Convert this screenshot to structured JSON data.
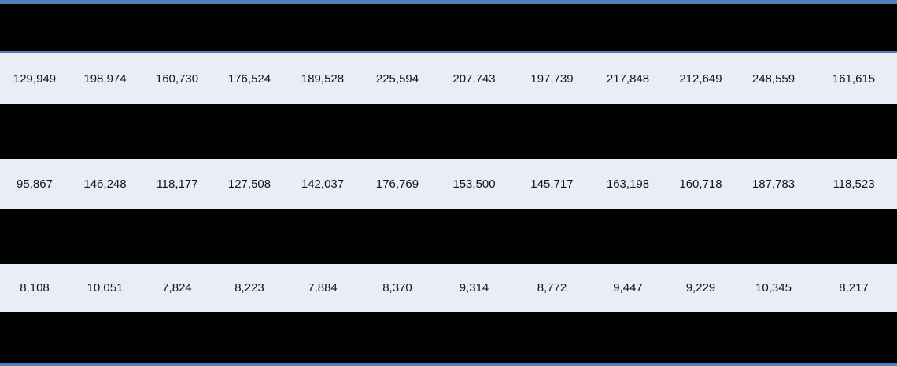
{
  "colors": {
    "accent_border": "#4f81bd",
    "data_row_background": "#e9edf5",
    "redacted_band": "#000000",
    "cell_text": "#141414"
  },
  "table": {
    "column_count": 12,
    "redacted_row_count": 4,
    "data_rows": [
      [
        "129,949",
        "198,974",
        "160,730",
        "176,524",
        "189,528",
        "225,594",
        "207,743",
        "197,739",
        "217,848",
        "212,649",
        "248,559",
        "161,615"
      ],
      [
        "95,867",
        "146,248",
        "118,177",
        "127,508",
        "142,037",
        "176,769",
        "153,500",
        "145,717",
        "163,198",
        "160,718",
        "187,783",
        "118,523"
      ],
      [
        "8,108",
        "10,051",
        "7,824",
        "8,223",
        "7,884",
        "8,370",
        "9,314",
        "8,772",
        "9,447",
        "9,229",
        "10,345",
        "8,217"
      ]
    ]
  }
}
